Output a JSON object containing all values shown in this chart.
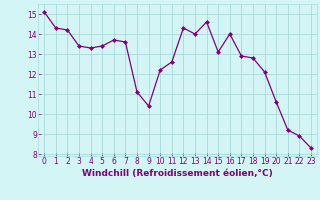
{
  "x": [
    0,
    1,
    2,
    3,
    4,
    5,
    6,
    7,
    8,
    9,
    10,
    11,
    12,
    13,
    14,
    15,
    16,
    17,
    18,
    19,
    20,
    21,
    22,
    23
  ],
  "y": [
    15.1,
    14.3,
    14.2,
    13.4,
    13.3,
    13.4,
    13.7,
    13.6,
    11.1,
    10.4,
    12.2,
    12.6,
    14.3,
    14.0,
    14.6,
    13.1,
    14.0,
    12.9,
    12.8,
    12.1,
    10.6,
    9.2,
    8.9,
    8.3
  ],
  "line_color": "#800080",
  "marker": "D",
  "marker_size": 2.0,
  "bg_color": "#d4f5f5",
  "grid_color": "#a8dada",
  "xlabel": "Windchill (Refroidissement éolien,°C)",
  "xlabel_color": "#800080",
  "tick_color": "#800080",
  "ylim": [
    7.9,
    15.5
  ],
  "xlim": [
    -0.5,
    23.5
  ],
  "yticks": [
    8,
    9,
    10,
    11,
    12,
    13,
    14,
    15
  ],
  "xticks": [
    0,
    1,
    2,
    3,
    4,
    5,
    6,
    7,
    8,
    9,
    10,
    11,
    12,
    13,
    14,
    15,
    16,
    17,
    18,
    19,
    20,
    21,
    22,
    23
  ],
  "tick_fontsize": 5.5,
  "xlabel_fontsize": 6.5,
  "linewidth": 0.9
}
